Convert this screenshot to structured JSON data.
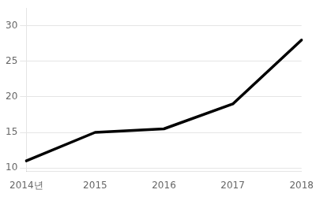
{
  "chart_data": {
    "type": "line",
    "categories": [
      "2014년",
      "2015",
      "2016",
      "2017",
      "2018"
    ],
    "values": [
      11.0,
      15.0,
      15.5,
      19.0,
      28.0
    ],
    "color": "#000000",
    "ylim": [
      9.5,
      32.5
    ],
    "yticks": [
      10,
      15,
      20,
      25,
      30
    ],
    "grid": "y"
  }
}
